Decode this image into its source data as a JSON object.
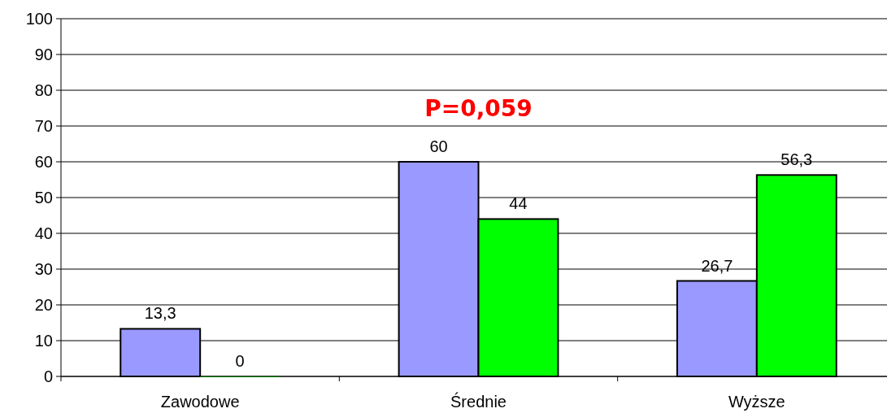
{
  "chart_data": {
    "type": "bar",
    "categories": [
      "Zawodowe",
      "Średnie",
      "Wyższe"
    ],
    "series": [
      {
        "color": "#9999ff",
        "values": [
          13.3,
          60,
          26.7
        ],
        "value_labels": [
          "13,3",
          "60",
          "26,7"
        ]
      },
      {
        "color": "#00ff00",
        "values": [
          0,
          44,
          56.3
        ],
        "value_labels": [
          "0",
          "44",
          "56,3"
        ]
      }
    ],
    "ylim": [
      0,
      100
    ],
    "yticks": [
      0,
      10,
      20,
      30,
      40,
      50,
      60,
      70,
      80,
      90,
      100
    ],
    "grid": "y",
    "annotations": [
      "P=0,059"
    ]
  }
}
